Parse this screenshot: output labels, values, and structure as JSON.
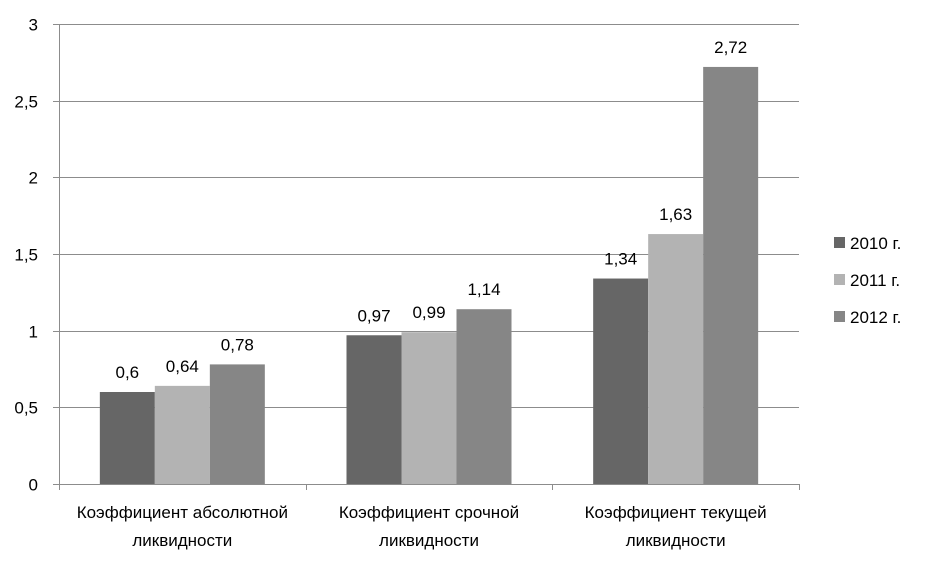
{
  "chart_data": {
    "type": "bar",
    "categories": [
      [
        "Коэффициент абсолютной",
        "ликвидности"
      ],
      [
        "Коэффициент срочной",
        "ликвидности"
      ],
      [
        "Коэффициент текущей",
        "ликвидности"
      ]
    ],
    "series": [
      {
        "name": "2010 г.",
        "color": "#666666",
        "values": [
          0.6,
          0.97,
          1.34
        ],
        "labels": [
          "0,6",
          "0,97",
          "1,34"
        ]
      },
      {
        "name": "2011 г.",
        "color": "#b3b3b3",
        "values": [
          0.64,
          0.99,
          1.63
        ],
        "labels": [
          "0,64",
          "0,99",
          "1,63"
        ]
      },
      {
        "name": "2012 г.",
        "color": "#868686",
        "values": [
          0.78,
          1.14,
          2.72
        ],
        "labels": [
          "0,78",
          "1,14",
          "2,72"
        ]
      }
    ],
    "ylim": [
      0,
      3
    ],
    "yticks": [
      0,
      0.5,
      1,
      1.5,
      2,
      2.5,
      3
    ],
    "ytick_labels": [
      "0",
      "0,5",
      "1",
      "1,5",
      "2",
      "2,5",
      "3"
    ],
    "grid": true,
    "legend_position": "right",
    "title": "",
    "xlabel": "",
    "ylabel": ""
  }
}
